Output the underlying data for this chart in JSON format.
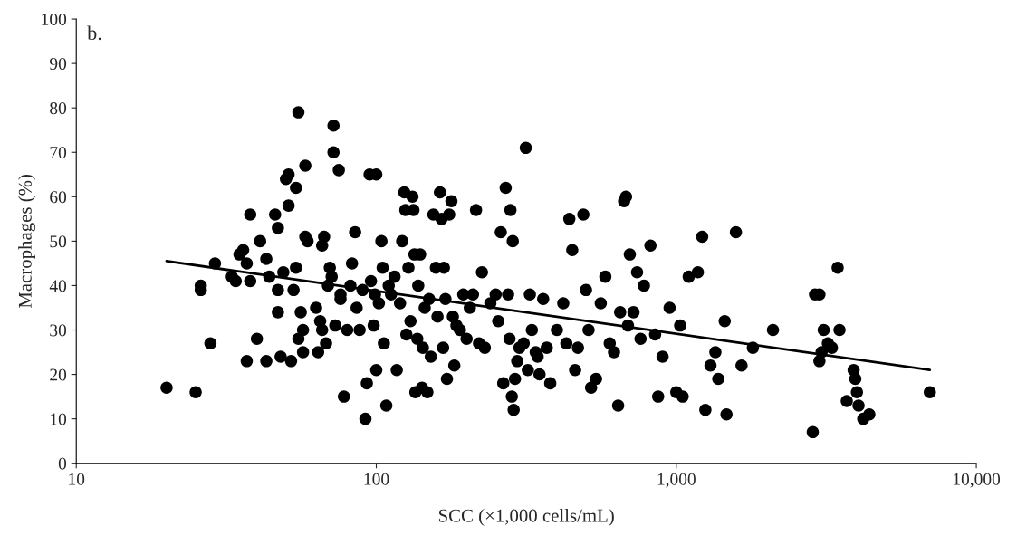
{
  "chart_data": {
    "type": "scatter",
    "xlabel": "SCC (×1,000 cells/mL)",
    "ylabel": "Macrophages (%)",
    "annotations": [
      "b."
    ],
    "log": "x",
    "xlim": [
      10,
      10000
    ],
    "xticks": [
      10,
      100,
      {
        "value": 1000,
        "label": "1,000"
      },
      {
        "value": 10000,
        "label": "10,000"
      }
    ],
    "ylim": [
      0,
      100
    ],
    "yticks": [
      0,
      10,
      20,
      30,
      40,
      50,
      60,
      70,
      80,
      90,
      100
    ],
    "grid": false,
    "series": [
      {
        "color": "#000000",
        "marker": "circle",
        "x": [
          20,
          25,
          26,
          26,
          28,
          29,
          33,
          34,
          35,
          36,
          37,
          37,
          38,
          38,
          40,
          41,
          43,
          43,
          44,
          46,
          47,
          47,
          47,
          48,
          49,
          50,
          51,
          51,
          52,
          53,
          54,
          54,
          55,
          55,
          56,
          57,
          57,
          58,
          58,
          59,
          63,
          64,
          65,
          66,
          66,
          67,
          68,
          69,
          70,
          71,
          72,
          72,
          73,
          75,
          76,
          76,
          78,
          80,
          82,
          83,
          85,
          86,
          88,
          90,
          92,
          93,
          95,
          96,
          98,
          99,
          100,
          100,
          102,
          104,
          105,
          106,
          108,
          110,
          112,
          115,
          117,
          120,
          122,
          124,
          125,
          126,
          128,
          130,
          132,
          133,
          134,
          135,
          137,
          138,
          140,
          142,
          143,
          145,
          148,
          150,
          152,
          155,
          158,
          160,
          163,
          165,
          167,
          168,
          170,
          172,
          175,
          178,
          180,
          182,
          185,
          190,
          195,
          200,
          205,
          210,
          215,
          220,
          225,
          230,
          240,
          250,
          255,
          260,
          265,
          270,
          275,
          278,
          280,
          283,
          285,
          287,
          290,
          295,
          300,
          310,
          315,
          320,
          325,
          330,
          340,
          345,
          350,
          360,
          370,
          380,
          400,
          420,
          430,
          440,
          450,
          460,
          470,
          490,
          500,
          510,
          520,
          540,
          560,
          580,
          600,
          620,
          640,
          650,
          670,
          680,
          690,
          700,
          720,
          740,
          760,
          780,
          820,
          850,
          870,
          900,
          950,
          1000,
          1030,
          1050,
          1100,
          1180,
          1220,
          1250,
          1300,
          1350,
          1380,
          1450,
          1470,
          1580,
          1650,
          1800,
          2100,
          2850,
          2900,
          3000,
          3000,
          3050,
          3100,
          3200,
          3300,
          3450,
          3500,
          3700,
          3900,
          3950,
          4000,
          4050,
          4200,
          4400,
          7000
        ],
        "values": [
          17,
          16,
          39,
          40,
          27,
          45,
          42,
          41,
          47,
          48,
          23,
          45,
          56,
          41,
          28,
          50,
          46,
          23,
          42,
          56,
          53,
          34,
          39,
          24,
          43,
          64,
          65,
          58,
          23,
          39,
          62,
          44,
          79,
          28,
          34,
          25,
          30,
          67,
          51,
          50,
          35,
          25,
          32,
          30,
          49,
          51,
          27,
          40,
          44,
          42,
          70,
          76,
          31,
          66,
          37,
          38,
          15,
          30,
          40,
          45,
          52,
          35,
          30,
          39,
          10,
          18,
          65,
          41,
          31,
          38,
          65,
          21,
          36,
          50,
          44,
          27,
          13,
          40,
          38,
          42,
          21,
          36,
          50,
          61,
          57,
          29,
          44,
          32,
          60,
          57,
          47,
          16,
          28,
          40,
          47,
          17,
          26,
          35,
          16,
          37,
          24,
          56,
          44,
          33,
          61,
          55,
          26,
          44,
          37,
          19,
          56,
          59,
          33,
          22,
          31,
          30,
          38,
          28,
          35,
          38,
          57,
          27,
          43,
          26,
          36,
          38,
          32,
          52,
          18,
          62,
          38,
          28,
          57,
          15,
          50,
          12,
          19,
          23,
          26,
          27,
          71,
          21,
          38,
          30,
          25,
          24,
          20,
          37,
          26,
          18,
          30,
          36,
          27,
          55,
          48,
          21,
          26,
          56,
          39,
          30,
          17,
          19,
          36,
          42,
          27,
          25,
          13,
          34,
          59,
          60,
          31,
          47,
          34,
          43,
          28,
          40,
          49,
          29,
          15,
          24,
          35,
          16,
          31,
          15,
          42,
          43,
          51,
          12,
          22,
          25,
          19,
          32,
          11,
          52,
          22,
          26,
          30,
          7,
          38,
          38,
          23,
          25,
          30,
          27,
          26,
          44,
          30,
          14,
          21,
          19,
          16,
          13,
          10,
          11,
          16
        ]
      },
      {
        "type": "line",
        "color": "#000000",
        "x": [
          20,
          7000
        ],
        "values": [
          45.5,
          21
        ]
      }
    ]
  }
}
